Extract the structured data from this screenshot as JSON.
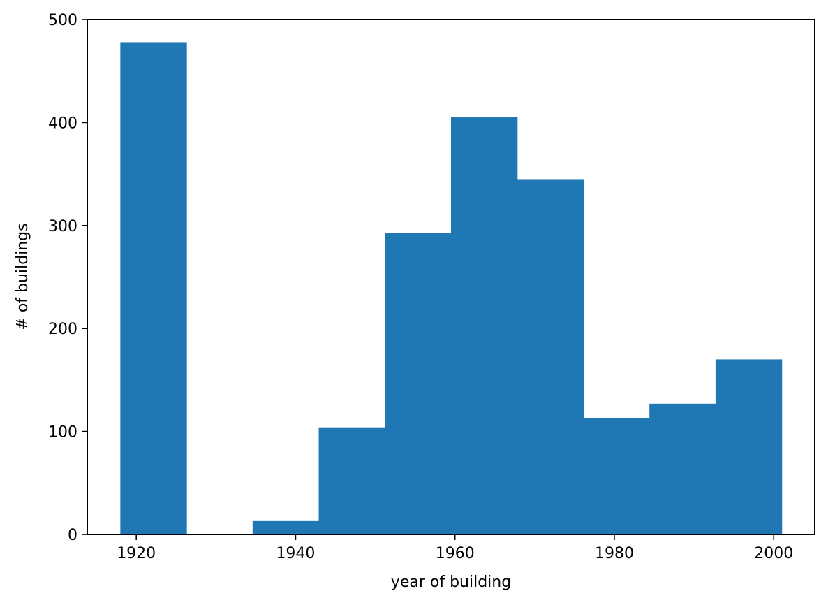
{
  "chart_data": {
    "type": "bar",
    "subtype": "histogram",
    "color": "#1f77b4",
    "xlabel": "year of building",
    "ylabel": "# of buildings",
    "xlim": [
      1913.85,
      2005.15
    ],
    "ylim": [
      0,
      500
    ],
    "grid": false,
    "legend": "none",
    "x_ticks": [
      1920,
      1940,
      1960,
      1980,
      2000
    ],
    "y_ticks": [
      0,
      100,
      200,
      300,
      400,
      500
    ],
    "bins": [
      {
        "x0": 1918.0,
        "x1": 1926.3,
        "value": 478
      },
      {
        "x0": 1926.3,
        "x1": 1934.6,
        "value": 0
      },
      {
        "x0": 1934.6,
        "x1": 1942.9,
        "value": 13
      },
      {
        "x0": 1942.9,
        "x1": 1951.2,
        "value": 104
      },
      {
        "x0": 1951.2,
        "x1": 1959.5,
        "value": 293
      },
      {
        "x0": 1959.5,
        "x1": 1967.8,
        "value": 405
      },
      {
        "x0": 1967.8,
        "x1": 1976.1,
        "value": 345
      },
      {
        "x0": 1976.1,
        "x1": 1984.4,
        "value": 113
      },
      {
        "x0": 1984.4,
        "x1": 1992.7,
        "value": 127
      },
      {
        "x0": 1992.7,
        "x1": 2001.0,
        "value": 170
      }
    ]
  }
}
